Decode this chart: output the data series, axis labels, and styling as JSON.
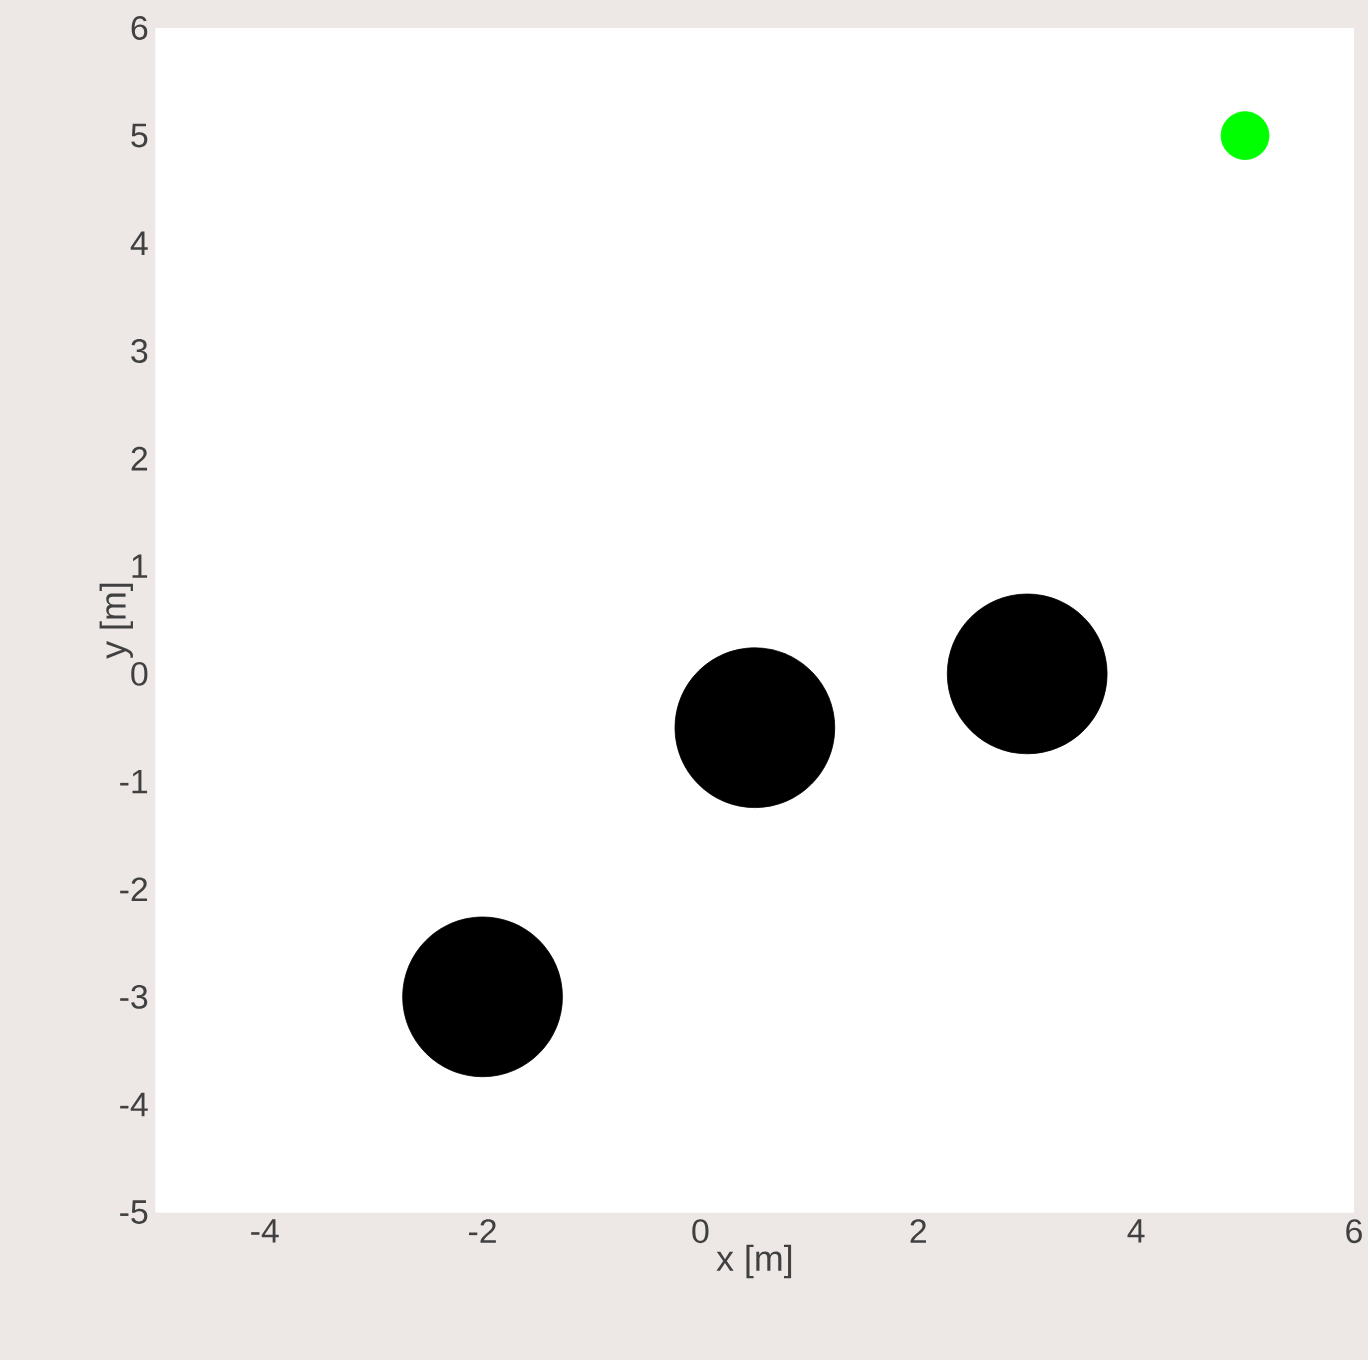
{
  "chart_data": {
    "type": "bubble",
    "xlabel": "x [m]",
    "ylabel": "y [m]",
    "xlim": [
      -5,
      6
    ],
    "ylim": [
      -5,
      6
    ],
    "xticks": [
      -4,
      -2,
      0,
      2,
      4,
      6
    ],
    "yticks": [
      -5,
      -4,
      -3,
      -2,
      -1,
      0,
      1,
      2,
      3,
      4,
      5,
      6
    ],
    "grid": false,
    "series": [
      {
        "color": "#000000",
        "x": [
          -2,
          0.5,
          3
        ],
        "values": [
          -3,
          -0.5,
          0
        ],
        "sizes": [
          1,
          1,
          1
        ]
      },
      {
        "color": "#00ff00",
        "x": [
          5
        ],
        "values": [
          5
        ],
        "sizes": [
          0.09
        ]
      }
    ]
  }
}
